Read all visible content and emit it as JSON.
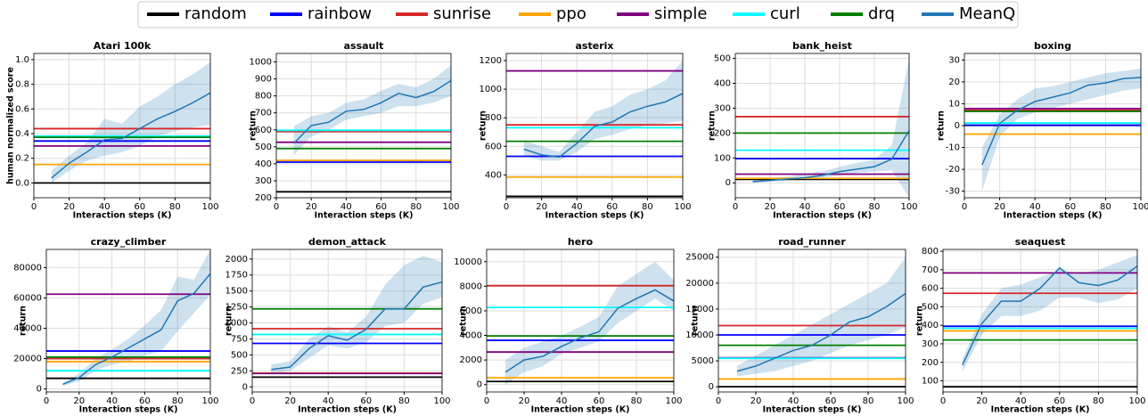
{
  "legend": [
    {
      "name": "random",
      "color": "#000000"
    },
    {
      "name": "rainbow",
      "color": "#0000ff"
    },
    {
      "name": "sunrise",
      "color": "#d62728"
    },
    {
      "name": "ppo",
      "color": "#ffa500"
    },
    {
      "name": "simple",
      "color": "#800080"
    },
    {
      "name": "curl",
      "color": "#00ffff"
    },
    {
      "name": "drq",
      "color": "#008000"
    },
    {
      "name": "MeanQ",
      "color": "#1f77b4"
    }
  ],
  "chart_data": [
    {
      "type": "line",
      "title": "Atari 100k",
      "xlabel": "Interaction steps (K)",
      "ylabel": "human normalized score",
      "x": [
        10,
        20,
        30,
        40,
        50,
        60,
        70,
        80,
        90,
        100
      ],
      "xlim": [
        0,
        100
      ],
      "xticks": [
        0,
        20,
        40,
        60,
        80,
        100
      ],
      "ylim": [
        -0.12,
        1.05
      ],
      "yticks": [
        {
          "value": 0,
          "label": "0.0"
        },
        0.2,
        0.4,
        0.6,
        0.8,
        {
          "value": 1,
          "label": "1.0"
        }
      ],
      "values": [
        0.04,
        0.16,
        0.25,
        0.35,
        0.36,
        0.44,
        0.52,
        0.58,
        0.65,
        0.73
      ],
      "lower": [
        0.0,
        0.1,
        0.18,
        0.22,
        0.25,
        0.3,
        0.38,
        0.42,
        0.45,
        0.47
      ],
      "upper": [
        0.1,
        0.22,
        0.33,
        0.52,
        0.48,
        0.62,
        0.7,
        0.8,
        0.88,
        0.98
      ],
      "baselines": [
        0.0,
        0.34,
        0.44,
        0.15,
        0.3,
        0.38,
        0.37
      ]
    },
    {
      "type": "line",
      "title": "assault",
      "xlabel": "Interaction steps (K)",
      "ylabel": "return",
      "x": [
        10,
        20,
        30,
        40,
        50,
        60,
        70,
        80,
        90,
        100
      ],
      "xlim": [
        0,
        100
      ],
      "xticks": [
        0,
        20,
        40,
        60,
        80,
        100
      ],
      "ylim": [
        200,
        1050
      ],
      "yticks": [
        200,
        300,
        400,
        500,
        600,
        700,
        800,
        900,
        1000
      ],
      "values": [
        520,
        625,
        645,
        710,
        720,
        760,
        815,
        790,
        825,
        890
      ],
      "lower": [
        450,
        560,
        600,
        660,
        680,
        700,
        740,
        740,
        760,
        800
      ],
      "upper": [
        620,
        680,
        700,
        760,
        780,
        830,
        870,
        850,
        900,
        980
      ],
      "baselines": [
        235,
        410,
        590,
        420,
        527,
        597,
        490
      ]
    },
    {
      "type": "line",
      "title": "asterix",
      "xlabel": "Interaction steps (K)",
      "ylabel": "return",
      "x": [
        10,
        20,
        30,
        40,
        50,
        60,
        70,
        80,
        90,
        100
      ],
      "xlim": [
        0,
        100
      ],
      "xticks": [
        0,
        20,
        40,
        60,
        80,
        100
      ],
      "ylim": [
        240,
        1250
      ],
      "yticks": [
        400,
        600,
        800,
        1000,
        1200
      ],
      "values": [
        580,
        540,
        525,
        620,
        740,
        770,
        840,
        880,
        910,
        970
      ],
      "lower": [
        530,
        500,
        500,
        560,
        650,
        680,
        720,
        750,
        760,
        780
      ],
      "upper": [
        640,
        600,
        560,
        700,
        840,
        880,
        960,
        1000,
        1060,
        1200
      ],
      "baselines": [
        250,
        530,
        750,
        385,
        1128,
        730,
        635
      ]
    },
    {
      "type": "line",
      "title": "bank_heist",
      "xlabel": "Interaction steps (K)",
      "ylabel": "return",
      "x": [
        10,
        20,
        30,
        40,
        50,
        60,
        70,
        80,
        90,
        100
      ],
      "xlim": [
        0,
        100
      ],
      "xticks": [
        0,
        20,
        40,
        60,
        80,
        100
      ],
      "ylim": [
        -60,
        520
      ],
      "yticks": [
        0,
        100,
        200,
        300,
        400,
        500
      ],
      "values": [
        5,
        10,
        15,
        20,
        30,
        45,
        55,
        65,
        95,
        210
      ],
      "lower": [
        0,
        5,
        10,
        15,
        20,
        30,
        40,
        45,
        50,
        -60
      ],
      "upper": [
        15,
        20,
        25,
        35,
        45,
        65,
        80,
        95,
        150,
        500
      ],
      "baselines": [
        14,
        97,
        266,
        18,
        35,
        131,
        200
      ]
    },
    {
      "type": "line",
      "title": "boxing",
      "xlabel": "Interaction steps (K)",
      "ylabel": "return",
      "x": [
        10,
        20,
        30,
        40,
        50,
        60,
        70,
        80,
        90,
        100
      ],
      "xlim": [
        0,
        100
      ],
      "xticks": [
        0,
        20,
        40,
        60,
        80,
        100
      ],
      "ylim": [
        -33,
        33
      ],
      "yticks": [
        -30,
        -20,
        -10,
        0,
        10,
        20,
        30
      ],
      "values": [
        -18,
        1,
        7,
        11,
        13,
        15,
        18.5,
        19.5,
        21.5,
        22
      ],
      "lower": [
        -30,
        -5,
        3,
        6,
        8,
        10,
        12,
        14,
        16,
        17
      ],
      "upper": [
        -10,
        5,
        12,
        17,
        18,
        20,
        22,
        24,
        25,
        26
      ],
      "baselines": [
        0.1,
        0.2,
        7.0,
        -3.9,
        7.8,
        1.2,
        6.5
      ]
    },
    {
      "type": "line",
      "title": "crazy_climber",
      "xlabel": "Interaction steps (K)",
      "ylabel": "return",
      "x": [
        10,
        20,
        30,
        40,
        50,
        60,
        70,
        80,
        90,
        100
      ],
      "xlim": [
        0,
        100
      ],
      "xticks": [
        0,
        20,
        40,
        60,
        80,
        100
      ],
      "ylim": [
        -2000,
        92000
      ],
      "yticks": [
        0,
        20000,
        40000,
        60000,
        80000
      ],
      "values": [
        3000,
        7500,
        16000,
        21000,
        27000,
        33000,
        39000,
        58000,
        63000,
        76000
      ],
      "lower": [
        2000,
        5000,
        12000,
        16000,
        18000,
        22000,
        25000,
        38000,
        50000,
        62000
      ],
      "upper": [
        4000,
        10000,
        20000,
        26000,
        33000,
        42000,
        52000,
        74000,
        72000,
        92000
      ],
      "baselines": [
        7000,
        25000,
        20000,
        18000,
        62500,
        12000,
        21000
      ]
    },
    {
      "type": "line",
      "title": "demon_attack",
      "xlabel": "Interaction steps (K)",
      "ylabel": "return",
      "x": [
        10,
        20,
        30,
        40,
        50,
        60,
        70,
        80,
        90,
        100
      ],
      "xlim": [
        0,
        100
      ],
      "xticks": [
        0,
        20,
        40,
        60,
        80,
        100
      ],
      "ylim": [
        -80,
        2150
      ],
      "yticks": [
        0,
        250,
        500,
        750,
        1000,
        1250,
        1500,
        1750,
        2000
      ],
      "values": [
        270,
        310,
        600,
        800,
        730,
        900,
        1220,
        1220,
        1560,
        1640
      ],
      "lower": [
        200,
        250,
        450,
        650,
        600,
        700,
        950,
        1000,
        1300,
        1400
      ],
      "upper": [
        350,
        400,
        750,
        950,
        850,
        1100,
        1600,
        1900,
        2050,
        1950
      ],
      "baselines": [
        152,
        680,
        910,
        215,
        210,
        820,
        1220
      ]
    },
    {
      "type": "line",
      "title": "hero",
      "xlabel": "Interaction steps (K)",
      "ylabel": "return",
      "x": [
        10,
        20,
        30,
        40,
        50,
        60,
        70,
        80,
        90,
        100
      ],
      "xlim": [
        0,
        100
      ],
      "xticks": [
        0,
        20,
        40,
        60,
        80,
        100
      ],
      "ylim": [
        -600,
        11000
      ],
      "yticks": [
        0,
        2000,
        4000,
        6000,
        8000,
        10000
      ],
      "values": [
        1000,
        2000,
        2300,
        3100,
        3800,
        4300,
        6200,
        7000,
        7700,
        6800
      ],
      "lower": [
        0,
        1000,
        1500,
        2500,
        3000,
        3500,
        5000,
        6000,
        7000,
        6000
      ],
      "upper": [
        2000,
        3000,
        3500,
        4000,
        4700,
        5500,
        8000,
        9000,
        10000,
        8500
      ],
      "baselines": [
        250,
        3600,
        8050,
        560,
        2650,
        6280,
        3960
      ]
    },
    {
      "type": "line",
      "title": "road_runner",
      "xlabel": "Interaction steps (K)",
      "ylabel": "return",
      "x": [
        10,
        20,
        30,
        40,
        50,
        60,
        70,
        80,
        90,
        100
      ],
      "xlim": [
        0,
        100
      ],
      "xticks": [
        0,
        20,
        40,
        60,
        80,
        100
      ],
      "ylim": [
        -1000,
        26500
      ],
      "yticks": [
        0,
        5000,
        10000,
        15000,
        20000,
        25000
      ],
      "values": [
        3000,
        4000,
        5500,
        7000,
        8000,
        10000,
        12500,
        13500,
        15500,
        18000
      ],
      "lower": [
        2000,
        2500,
        3000,
        4000,
        5000,
        6500,
        8000,
        9000,
        10000,
        11500
      ],
      "upper": [
        4000,
        6000,
        8000,
        10000,
        12000,
        14000,
        16000,
        18000,
        20000,
        25000
      ],
      "baselines": [
        12,
        10000,
        11800,
        1500,
        5600,
        5500,
        8000
      ]
    },
    {
      "type": "line",
      "title": "seaquest",
      "xlabel": "Interaction steps (K)",
      "ylabel": "return",
      "x": [
        10,
        20,
        30,
        40,
        50,
        60,
        70,
        80,
        90,
        100
      ],
      "xlim": [
        0,
        100
      ],
      "xticks": [
        0,
        20,
        40,
        60,
        80,
        100
      ],
      "ylim": [
        40,
        810
      ],
      "yticks": [
        100,
        200,
        300,
        400,
        500,
        600,
        700,
        800
      ],
      "values": [
        185,
        410,
        530,
        530,
        600,
        710,
        630,
        615,
        645,
        720
      ],
      "lower": [
        150,
        350,
        450,
        450,
        480,
        550,
        550,
        520,
        540,
        600
      ],
      "upper": [
        220,
        460,
        600,
        620,
        660,
        700,
        680,
        700,
        740,
        780
      ],
      "baselines": [
        68,
        395,
        573,
        370,
        683,
        384,
        321
      ]
    }
  ]
}
